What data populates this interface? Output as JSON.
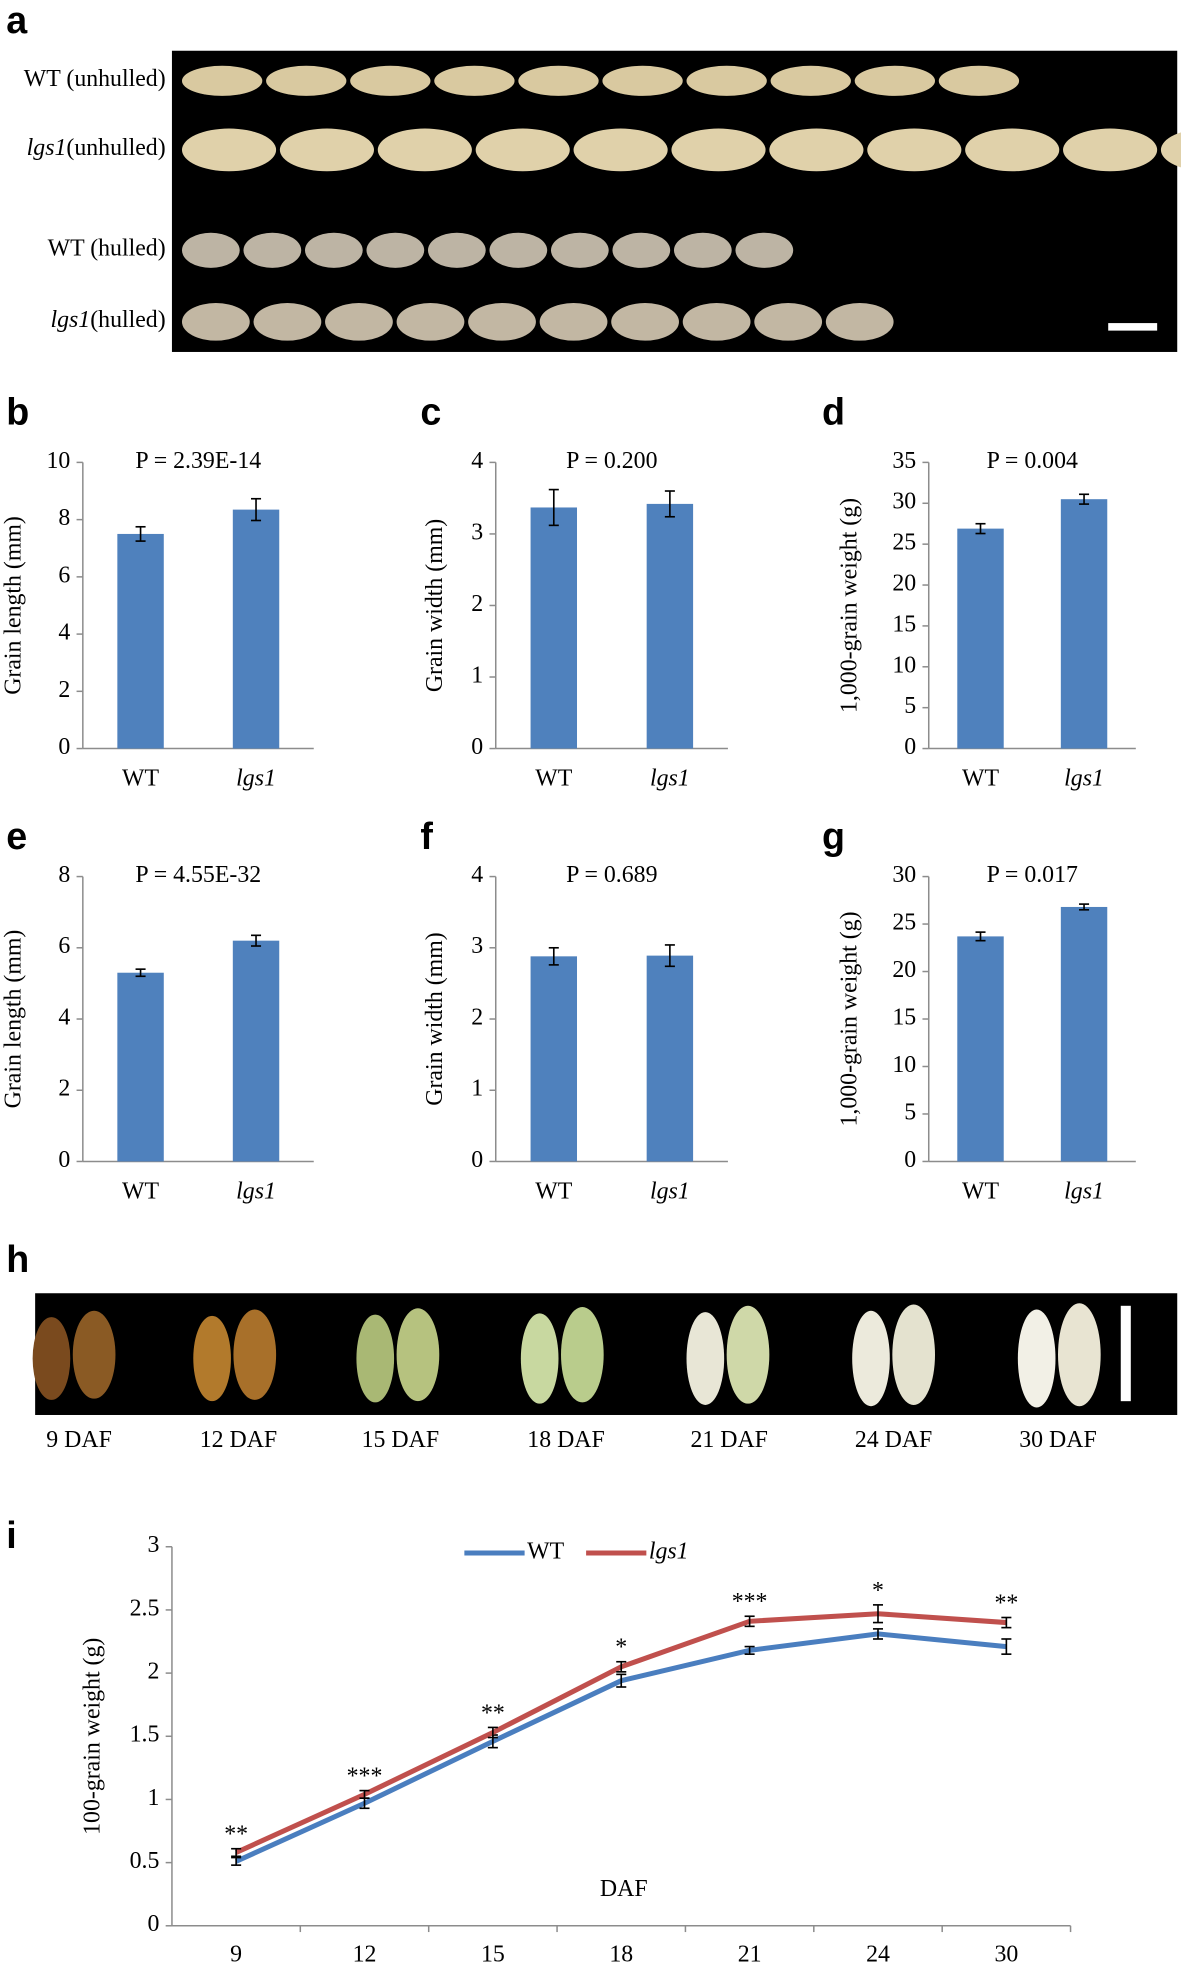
{
  "figure": {
    "panel_labels": [
      "a",
      "b",
      "c",
      "d",
      "e",
      "f",
      "g",
      "h",
      "i"
    ],
    "grain_photo": {
      "row_labels": [
        [
          "WT (unhulled)"
        ],
        [
          "lgs1",
          "(unhulled)"
        ],
        [
          "WT (hulled)"
        ],
        [
          "lgs1",
          "(hulled)"
        ]
      ]
    },
    "development_photo": {
      "labels": [
        "9 DAF",
        "12 DAF",
        "15 DAF",
        "18 DAF",
        "21 DAF",
        "24 DAF",
        "30 DAF"
      ]
    }
  },
  "chart_data": [
    {
      "type": "bar",
      "title": "P = 2.39E-14",
      "y_label": "Grain length (mm)",
      "categories": [
        "WT",
        "lgs1"
      ],
      "values": [
        7.5,
        8.35
      ],
      "errors": [
        0.25,
        0.38
      ],
      "color": "#4f81bd",
      "ylim": [
        0,
        10
      ],
      "yticks": [
        0,
        2,
        4,
        6,
        8,
        10
      ]
    },
    {
      "type": "bar",
      "title": "P = 0.200",
      "y_label": "Grain width (mm)",
      "categories": [
        "WT",
        "lgs1"
      ],
      "values": [
        3.37,
        3.42
      ],
      "errors": [
        0.25,
        0.18
      ],
      "color": "#4f81bd",
      "ylim": [
        0,
        4
      ],
      "yticks": [
        0,
        1,
        2,
        3,
        4
      ]
    },
    {
      "type": "bar",
      "title": "P = 0.004",
      "y_label": "1,000-grain weight (g)",
      "categories": [
        "WT",
        "lgs1"
      ],
      "values": [
        26.9,
        30.5
      ],
      "errors": [
        0.6,
        0.6
      ],
      "color": "#4f81bd",
      "ylim": [
        0,
        35
      ],
      "yticks": [
        0,
        5,
        10,
        15,
        20,
        25,
        30,
        35
      ]
    },
    {
      "type": "bar",
      "title": "P = 4.55E-32",
      "y_label": "Grain length (mm)",
      "categories": [
        "WT",
        "lgs1"
      ],
      "values": [
        5.3,
        6.2
      ],
      "errors": [
        0.1,
        0.15
      ],
      "color": "#4f81bd",
      "ylim": [
        0,
        8
      ],
      "yticks": [
        0,
        2,
        4,
        6,
        8
      ]
    },
    {
      "type": "bar",
      "title": "P = 0.689",
      "y_label": "Grain width (mm)",
      "categories": [
        "WT",
        "lgs1"
      ],
      "values": [
        2.88,
        2.89
      ],
      "errors": [
        0.12,
        0.15
      ],
      "color": "#4f81bd",
      "ylim": [
        0,
        4
      ],
      "yticks": [
        0,
        1,
        2,
        3,
        4
      ]
    },
    {
      "type": "bar",
      "title": "P = 0.017",
      "y_label": "1,000-grain weight (g)",
      "categories": [
        "WT",
        "lgs1"
      ],
      "values": [
        23.7,
        26.8
      ],
      "errors": [
        0.45,
        0.3
      ],
      "color": "#4f81bd",
      "ylim": [
        0,
        30
      ],
      "yticks": [
        0,
        5,
        10,
        15,
        20,
        25,
        30
      ]
    },
    {
      "type": "line",
      "y_label": "100-grain weight (g)",
      "x_label": "DAF",
      "categories": [
        "9",
        "12",
        "15",
        "18",
        "21",
        "24",
        "30"
      ],
      "series": [
        {
          "name": "WT",
          "color": "#4a7ebf",
          "values": [
            0.51,
            0.97,
            1.46,
            1.94,
            2.18,
            2.31,
            2.21
          ],
          "errors": [
            0.03,
            0.04,
            0.05,
            0.05,
            0.03,
            0.04,
            0.06
          ]
        },
        {
          "name": "lgs1",
          "color": "#c0504d",
          "values": [
            0.58,
            1.04,
            1.53,
            2.05,
            2.41,
            2.47,
            2.4
          ],
          "errors": [
            0.03,
            0.03,
            0.04,
            0.04,
            0.04,
            0.07,
            0.04
          ]
        }
      ],
      "annotations": [
        "**",
        "***",
        "**",
        "*",
        "***",
        "*",
        "**"
      ],
      "ylim": [
        0,
        3
      ],
      "yticks": [
        0,
        0.5,
        1,
        1.5,
        2,
        2.5,
        3
      ],
      "legend": "top"
    }
  ]
}
